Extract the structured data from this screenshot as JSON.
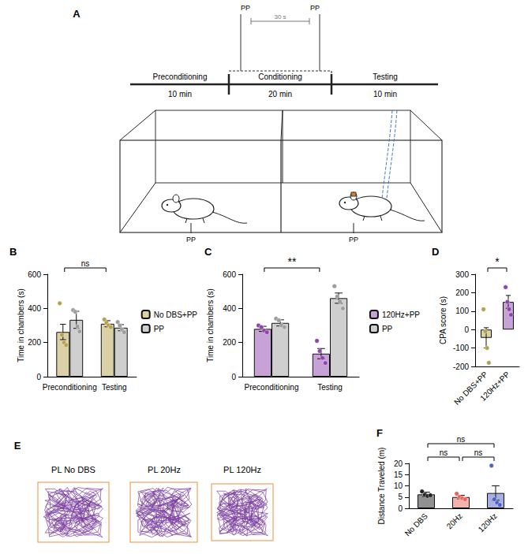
{
  "chart_data": [
    {
      "type": "bar",
      "title": "B",
      "categories": [
        "Preconditioning",
        "Testing"
      ],
      "series": [
        {
          "name": "No DBS+PP",
          "color": "#b5a24c",
          "values": [
            262,
            310
          ],
          "errors": [
            45,
            18
          ],
          "points": [
            [
              430,
              245,
              200,
              185
            ],
            [
              335,
              315,
              300,
              290
            ]
          ]
        },
        {
          "name": "PP",
          "color": "#9e9e9e",
          "values": [
            333,
            287
          ],
          "errors": [
            50,
            18
          ],
          "points": [
            [
              390,
              380,
              295,
              265
            ],
            [
              320,
              300,
              275,
              260
            ]
          ]
        }
      ],
      "y_label": "Time in chambers (s)",
      "ylim": [
        0,
        600
      ],
      "yticks": [
        0,
        200,
        400,
        600
      ],
      "grid": false,
      "legend": "right",
      "annotations": [
        {
          "text": "ns",
          "from": [
            0,
            0
          ],
          "to": [
            1,
            0
          ]
        }
      ]
    },
    {
      "type": "bar",
      "title": "C",
      "categories": [
        "Preconditioning",
        "Testing"
      ],
      "series": [
        {
          "name": "120Hz+PP",
          "color": "#8e44ad",
          "values": [
            280,
            135
          ],
          "errors": [
            15,
            30
          ],
          "points": [
            [
              300,
              290,
              270,
              260
            ],
            [
              210,
              150,
              110,
              80
            ]
          ]
        },
        {
          "name": "PP",
          "color": "#9e9e9e",
          "values": [
            315,
            460
          ],
          "errors": [
            18,
            30
          ],
          "points": [
            [
              340,
              330,
              300,
              290
            ],
            [
              530,
              470,
              440,
              400
            ]
          ]
        }
      ],
      "y_label": "Time in chambers (s)",
      "ylim": [
        0,
        600
      ],
      "yticks": [
        0,
        200,
        400,
        600
      ],
      "grid": false,
      "legend": "right",
      "annotations": [
        {
          "text": "**",
          "from": [
            0,
            0
          ],
          "to": [
            1,
            0
          ]
        }
      ]
    },
    {
      "type": "bar",
      "title": "D",
      "categories": [
        "No DBS+PP",
        "120Hz+PP"
      ],
      "values": [
        -45,
        150
      ],
      "errors": [
        55,
        35
      ],
      "colors": [
        "#b5a24c",
        "#8e44ad"
      ],
      "points": [
        [
          110,
          -10,
          -100,
          -180
        ],
        [
          230,
          150,
          110,
          80
        ]
      ],
      "y_label": "CPA score (s)",
      "ylim": [
        -200,
        300
      ],
      "yticks": [
        -200,
        -100,
        0,
        100,
        200,
        300
      ],
      "grid": false,
      "annotations": [
        {
          "text": "*",
          "from": [
            0,
            0
          ],
          "to": [
            1,
            0
          ]
        }
      ]
    },
    {
      "type": "bar",
      "title": "F",
      "categories": [
        "No DBS",
        "20Hz",
        "120Hz"
      ],
      "values": [
        6.2,
        5,
        6.8
      ],
      "errors": [
        1,
        0.8,
        3.2
      ],
      "colors": [
        "#222222",
        "#e8645f",
        "#4b62c4"
      ],
      "points": [
        [
          7.5,
          6,
          5.5,
          5.8
        ],
        [
          6.5,
          5,
          4.5,
          4
        ],
        [
          19,
          4,
          2.5,
          1.5
        ]
      ],
      "y_label": "Distance Traveled (m)",
      "ylim": [
        0,
        20
      ],
      "yticks": [
        0,
        5,
        10,
        15,
        20
      ],
      "grid": false,
      "annotations": [
        {
          "text": "ns",
          "from": [
            0,
            0
          ],
          "to": [
            1,
            0
          ]
        },
        {
          "text": "ns",
          "from": [
            1,
            0
          ],
          "to": [
            2,
            0
          ]
        },
        {
          "text": "ns",
          "from": [
            0,
            0
          ],
          "to": [
            2,
            0
          ]
        }
      ]
    }
  ],
  "schematic": {
    "label": "A",
    "stimulus_top": [
      "PP",
      "PP"
    ],
    "interval": "30 s",
    "phases": [
      {
        "name": "Preconditioning",
        "duration": "10 min"
      },
      {
        "name": "Conditioning",
        "duration": "20 min"
      },
      {
        "name": "Testing",
        "duration": "10 min"
      }
    ],
    "chamber_stimuli": [
      "PP",
      "PP"
    ]
  },
  "trajectories": {
    "label": "E",
    "titles": [
      "PL No DBS",
      "PL 20Hz",
      "PL 120Hz"
    ]
  }
}
